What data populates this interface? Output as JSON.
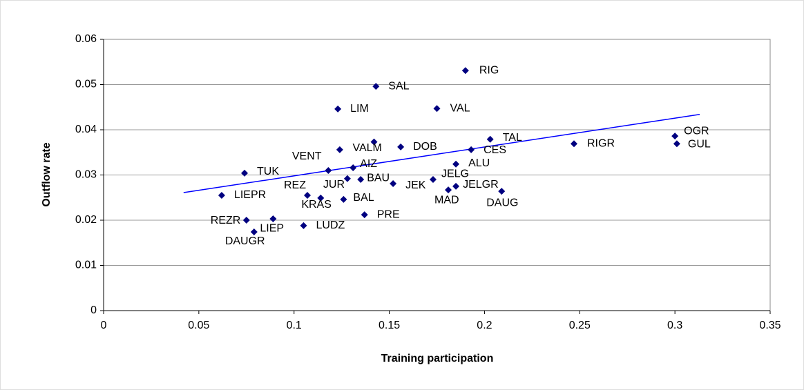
{
  "chart_data": {
    "type": "scatter",
    "xlabel": "Training participation",
    "ylabel": "Outflow rate",
    "xlim": [
      0,
      0.35
    ],
    "xticks": [
      0,
      0.05,
      0.1,
      0.15,
      0.2,
      0.25,
      0.3,
      0.35
    ],
    "ylim": [
      0,
      0.06
    ],
    "yticks": [
      0,
      0.01,
      0.02,
      0.03,
      0.04,
      0.05,
      0.06
    ],
    "grid": true,
    "color": "#000080",
    "labels": [
      "RIG",
      "SAL",
      "LIM",
      "VAL",
      "OGR",
      "GUL",
      "RIGR",
      "TAL",
      "CES",
      "DOB",
      "VALM",
      "VENT",
      null,
      "AIZ",
      "ALU",
      "TUK",
      "JUR",
      "BAU",
      "JEK",
      "JELG",
      "MAD",
      "JELGR",
      "DAUG",
      "REZ",
      "KRAS",
      "BAL",
      "LIEPR",
      "PRE",
      "LUDZ",
      "LIEP",
      "REZR",
      "DAUGR"
    ],
    "x": [
      0.19,
      0.143,
      0.123,
      0.175,
      0.3,
      0.301,
      0.247,
      0.203,
      0.193,
      0.156,
      0.142,
      0.124,
      0.118,
      0.131,
      0.185,
      0.074,
      0.128,
      0.135,
      0.152,
      0.173,
      0.181,
      0.185,
      0.209,
      0.107,
      0.114,
      0.126,
      0.062,
      0.137,
      0.105,
      0.089,
      0.075,
      0.079
    ],
    "y": [
      0.0531,
      0.0496,
      0.0446,
      0.0447,
      0.0386,
      0.0369,
      0.0369,
      0.0379,
      0.0356,
      0.0362,
      0.0373,
      0.0356,
      0.031,
      0.0316,
      0.0324,
      0.0304,
      0.0292,
      0.029,
      0.0281,
      0.029,
      0.0267,
      0.0275,
      0.0264,
      0.0255,
      0.0249,
      0.0246,
      0.0255,
      0.0212,
      0.0188,
      0.0203,
      0.02,
      0.0174
    ],
    "trendline": {
      "color": "#0000ff",
      "x": [
        0.042,
        0.313
      ],
      "y": [
        0.0261,
        0.0434
      ]
    }
  }
}
